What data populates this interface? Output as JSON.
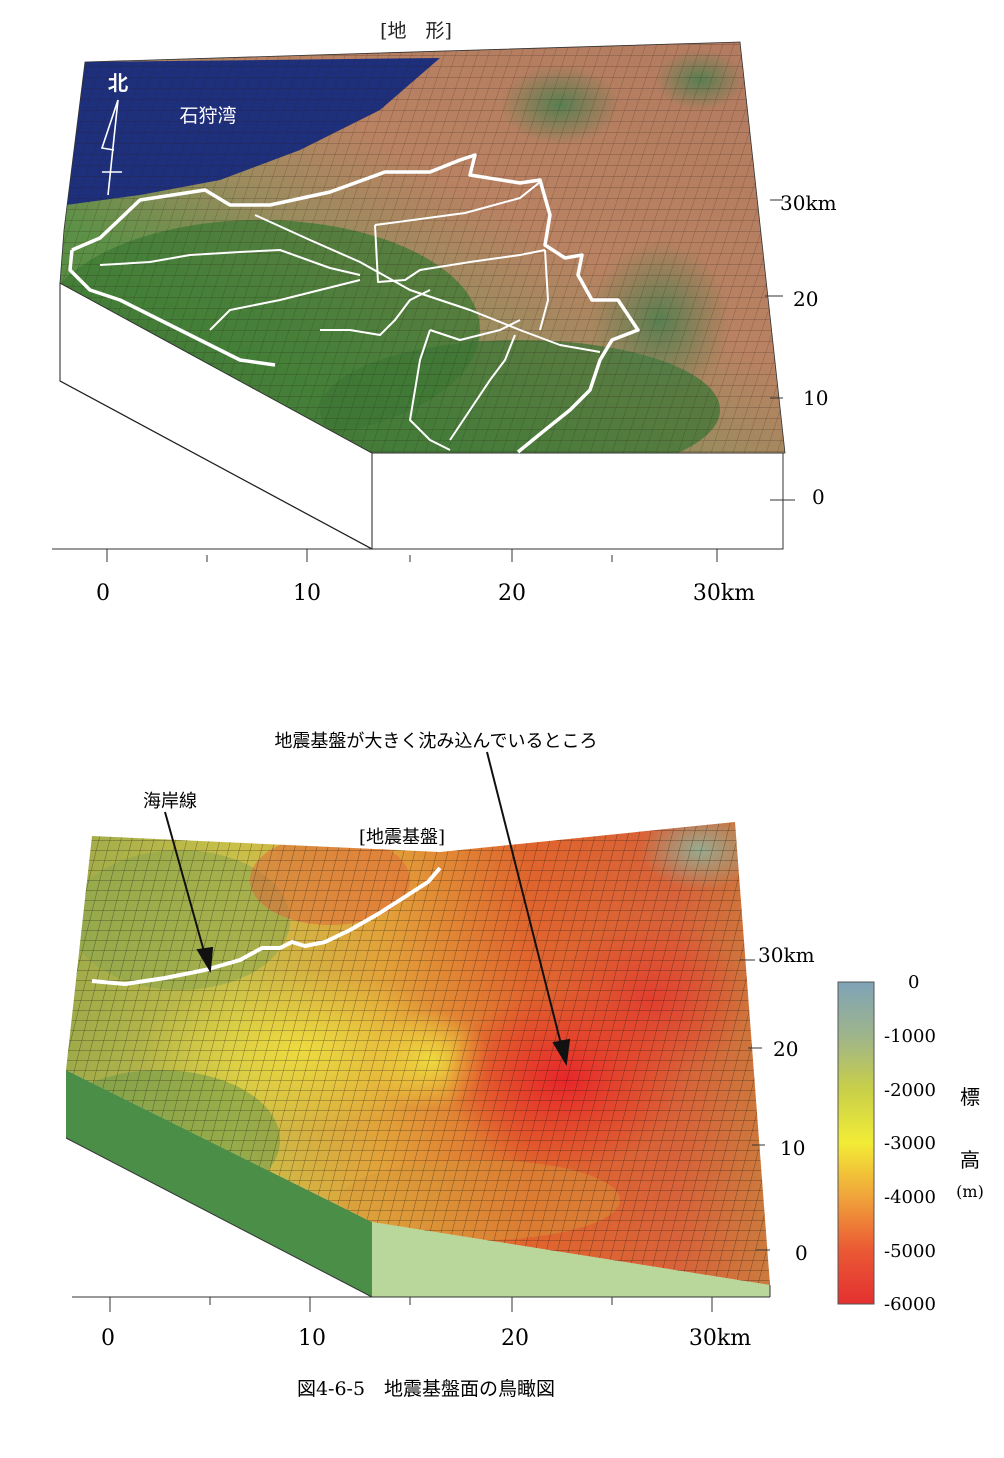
{
  "colors": {
    "sea": "#1e2f7c",
    "land_brown": "#b87f63",
    "land_green": "#4f8a3c",
    "basement_red": "#e03828",
    "basement_yellow": "#e6d83a",
    "basement_green": "#6a9a4a",
    "boundary_white": "#ffffff"
  },
  "top_panel": {
    "title": "[地　形]",
    "north_label": "北",
    "bay_label": "石狩湾",
    "x_ticks": [
      "0",
      "10",
      "20",
      "30km"
    ],
    "y_ticks": [
      "30km",
      "20",
      "10",
      "0"
    ]
  },
  "bottom_panel": {
    "title": "[地震基盤]",
    "annotation_coast": "海岸線",
    "annotation_deep": "地震基盤が大きく沈み込んでいるところ",
    "x_ticks": [
      "0",
      "10",
      "20",
      "30km"
    ],
    "y_ticks": [
      "30km",
      "20",
      "10",
      "0"
    ],
    "colorbar": {
      "ticks": [
        "0",
        "-1000",
        "-2000",
        "-3000",
        "-4000",
        "-5000",
        "-6000"
      ],
      "label_chars": [
        "標",
        "高",
        "(m)"
      ]
    }
  },
  "caption": "図4-6-5　地震基盤面の鳥瞰図"
}
